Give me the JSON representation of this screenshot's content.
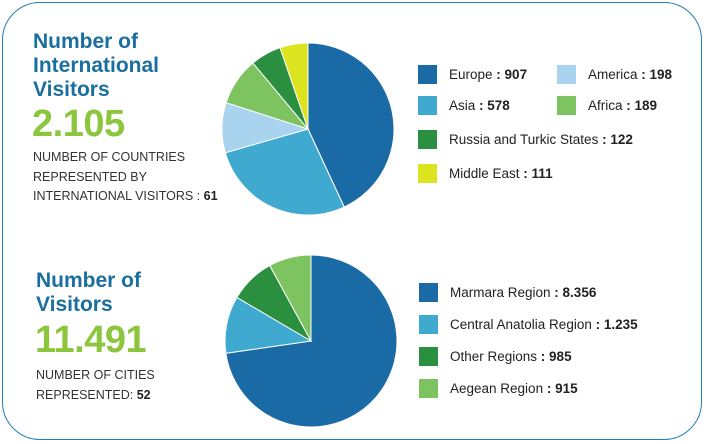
{
  "international": {
    "title": "Number of\nInternational\nVisitors",
    "total": "2.105",
    "sub_line1": "NUMBER OF COUNTRIES",
    "sub_line2": "REPRESENTED BY",
    "sub_line3": "INTERNATIONAL VISITORS : ",
    "countries": "61"
  },
  "domestic": {
    "title": "Number of\nVisitors",
    "total": "11.491",
    "sub_line1": "NUMBER OF CITIES",
    "sub_line2": "REPRESENTED: ",
    "cities": "52"
  },
  "chart_data": [
    {
      "type": "pie",
      "categories": [
        "Europe",
        "Asia",
        "America",
        "Africa",
        "Russia and Turkic States",
        "Middle East"
      ],
      "values": [
        907,
        578,
        198,
        189,
        122,
        111
      ],
      "value_labels": [
        "907",
        "578",
        "198",
        "189",
        "122",
        "111"
      ],
      "colors": [
        "#1a6aa6",
        "#40a9d0",
        "#a9d3ee",
        "#7dc461",
        "#2a8f3e",
        "#dce31f"
      ],
      "legend": "right"
    },
    {
      "type": "pie",
      "categories": [
        "Marmara Region",
        "Central Anatolia Region",
        "Other Regions",
        "Aegean Region"
      ],
      "values": [
        8356,
        1235,
        985,
        915
      ],
      "value_labels": [
        "8.356",
        "1.235",
        "985",
        "915"
      ],
      "colors": [
        "#1a6aa6",
        "#40a9d0",
        "#2a8f3e",
        "#7dc461"
      ],
      "legend": "right"
    }
  ]
}
